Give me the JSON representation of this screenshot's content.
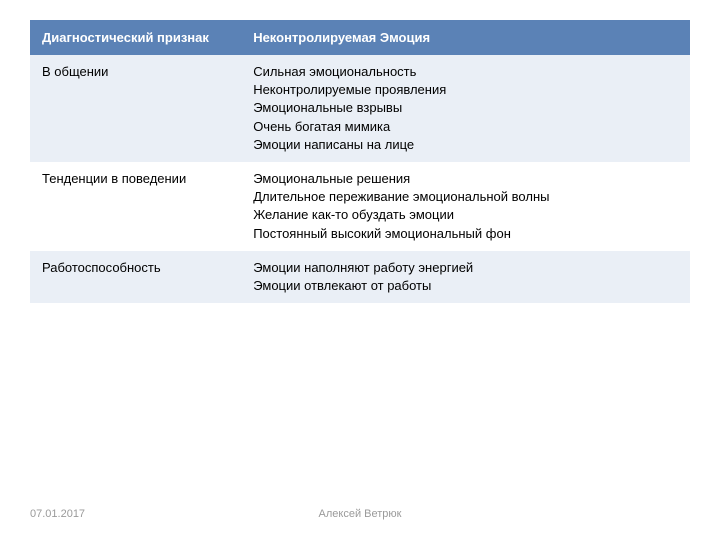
{
  "table": {
    "header_bg": "#5b82b6",
    "header_fg": "#ffffff",
    "row_alt_bg": "#eaeff6",
    "row_plain_bg": "#ffffff",
    "font_size": 13,
    "columns": [
      {
        "label": "Диагностический признак",
        "width": "32%"
      },
      {
        "label": "Неконтролируемая Эмоция",
        "width": "68%"
      }
    ],
    "rows": [
      {
        "alt": true,
        "left": "В общении",
        "right": "Сильная эмоциональность\nНеконтролируемые проявления\nЭмоциональные взрывы\nОчень богатая мимика\nЭмоции написаны на лице"
      },
      {
        "alt": false,
        "left": "Тенденции в поведении",
        "right": "Эмоциональные решения\nДлительное переживание эмоциональной волны\nЖелание как-то обуздать эмоции\nПостоянный высокий эмоциональный фон"
      },
      {
        "alt": true,
        "left": "Работоспособность",
        "right": "Эмоции наполняют работу энергией\nЭмоции отвлекают от работы"
      }
    ]
  },
  "footer": {
    "date": "07.01.2017",
    "author": "Алексей Ветрюк",
    "color": "#9a9a9a",
    "font_size": 11
  }
}
